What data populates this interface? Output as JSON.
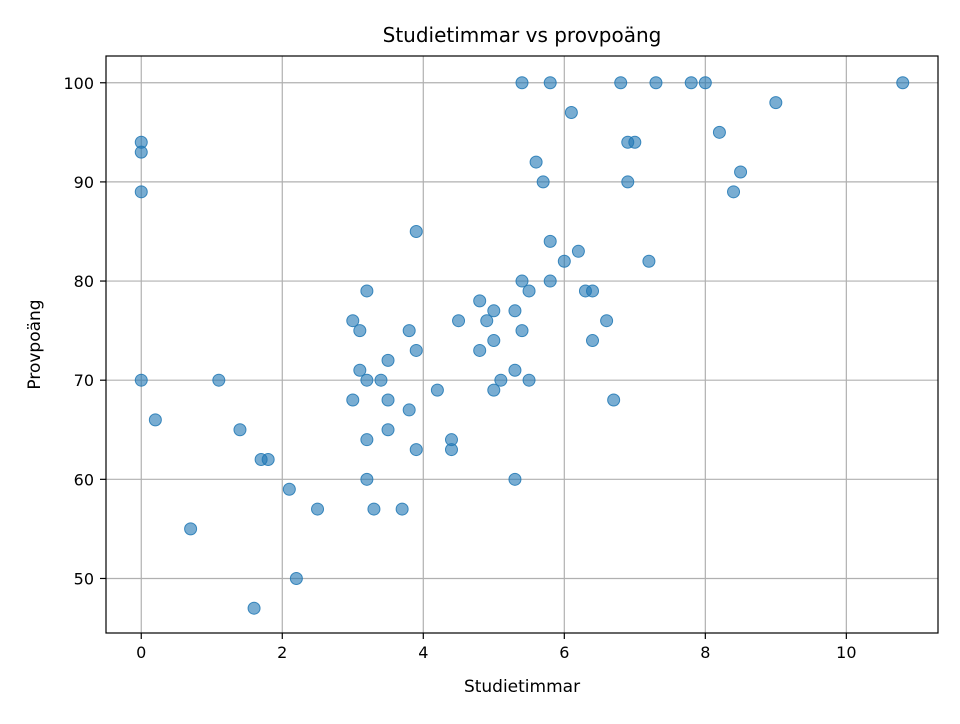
{
  "chart_data": {
    "type": "scatter",
    "title": "Studietimmar vs provpoäng",
    "xlabel": "Studietimmar",
    "ylabel": "Provpoäng",
    "xlim": [
      -0.5,
      11.3
    ],
    "ylim": [
      44.5,
      102.7
    ],
    "xticks": [
      0,
      2,
      4,
      6,
      8,
      10
    ],
    "yticks": [
      50,
      60,
      70,
      80,
      90,
      100
    ],
    "grid": true,
    "marker_color": "#1f77b4",
    "marker_opacity": 0.6,
    "series": [
      {
        "points": [
          [
            0,
            94
          ],
          [
            0,
            93
          ],
          [
            0,
            89
          ],
          [
            0,
            70
          ],
          [
            0.2,
            66
          ],
          [
            0.7,
            55
          ],
          [
            1.1,
            70
          ],
          [
            1.4,
            65
          ],
          [
            1.6,
            47
          ],
          [
            1.7,
            62
          ],
          [
            1.8,
            62
          ],
          [
            2.1,
            59
          ],
          [
            2.2,
            50
          ],
          [
            2.5,
            57
          ],
          [
            3.0,
            76
          ],
          [
            3.0,
            68
          ],
          [
            3.1,
            75
          ],
          [
            3.1,
            71
          ],
          [
            3.2,
            79
          ],
          [
            3.2,
            70
          ],
          [
            3.2,
            64
          ],
          [
            3.2,
            60
          ],
          [
            3.3,
            57
          ],
          [
            3.4,
            70
          ],
          [
            3.5,
            72
          ],
          [
            3.5,
            68
          ],
          [
            3.5,
            65
          ],
          [
            3.7,
            57
          ],
          [
            3.8,
            75
          ],
          [
            3.8,
            67
          ],
          [
            3.9,
            85
          ],
          [
            3.9,
            73
          ],
          [
            3.9,
            63
          ],
          [
            4.2,
            69
          ],
          [
            4.4,
            64
          ],
          [
            4.4,
            63
          ],
          [
            4.5,
            76
          ],
          [
            4.8,
            78
          ],
          [
            4.8,
            73
          ],
          [
            4.9,
            76
          ],
          [
            5.0,
            77
          ],
          [
            5.0,
            74
          ],
          [
            5.0,
            69
          ],
          [
            5.1,
            70
          ],
          [
            5.3,
            77
          ],
          [
            5.3,
            71
          ],
          [
            5.3,
            60
          ],
          [
            5.4,
            100
          ],
          [
            5.4,
            80
          ],
          [
            5.4,
            75
          ],
          [
            5.5,
            79
          ],
          [
            5.5,
            70
          ],
          [
            5.6,
            92
          ],
          [
            5.7,
            90
          ],
          [
            5.8,
            100
          ],
          [
            5.8,
            84
          ],
          [
            5.8,
            80
          ],
          [
            6.0,
            82
          ],
          [
            6.1,
            97
          ],
          [
            6.2,
            83
          ],
          [
            6.3,
            79
          ],
          [
            6.4,
            79
          ],
          [
            6.4,
            74
          ],
          [
            6.6,
            76
          ],
          [
            6.7,
            68
          ],
          [
            6.8,
            100
          ],
          [
            6.9,
            94
          ],
          [
            6.9,
            90
          ],
          [
            7.0,
            94
          ],
          [
            7.2,
            82
          ],
          [
            7.3,
            100
          ],
          [
            7.8,
            100
          ],
          [
            8.0,
            100
          ],
          [
            8.2,
            95
          ],
          [
            8.4,
            89
          ],
          [
            8.5,
            91
          ],
          [
            9.0,
            98
          ],
          [
            10.8,
            100
          ]
        ]
      }
    ]
  }
}
